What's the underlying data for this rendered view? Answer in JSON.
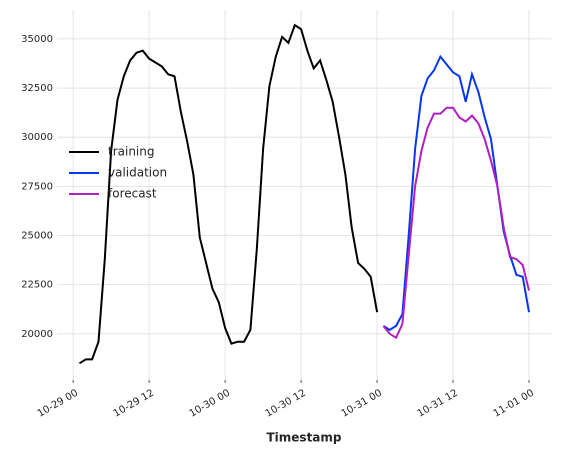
{
  "chart_data": {
    "type": "line",
    "xlabel": "Timestamp",
    "xlim": [
      "10-28 21:27",
      "11-01 03:33"
    ],
    "xticks": [
      "10-29 00",
      "10-29 12",
      "10-30 00",
      "10-30 12",
      "10-31 00",
      "10-31 12",
      "11-01 00"
    ],
    "ylim": [
      17650,
      36470
    ],
    "yticks": [
      20000,
      22500,
      25000,
      27500,
      30000,
      32500,
      35000
    ],
    "grid": true,
    "legend": "center left",
    "series": [
      {
        "name": "training",
        "color": "#000000",
        "x": [
          "10-29 01",
          "10-29 02",
          "10-29 03",
          "10-29 04",
          "10-29 05",
          "10-29 06",
          "10-29 07",
          "10-29 08",
          "10-29 09",
          "10-29 10",
          "10-29 11",
          "10-29 12",
          "10-29 13",
          "10-29 14",
          "10-29 15",
          "10-29 16",
          "10-29 17",
          "10-29 18",
          "10-29 19",
          "10-29 20",
          "10-29 21",
          "10-29 22",
          "10-29 23",
          "10-30 00",
          "10-30 01",
          "10-30 02",
          "10-30 03",
          "10-30 04",
          "10-30 05",
          "10-30 06",
          "10-30 07",
          "10-30 08",
          "10-30 09",
          "10-30 10",
          "10-30 11",
          "10-30 12",
          "10-30 13",
          "10-30 14",
          "10-30 15",
          "10-30 16",
          "10-30 17",
          "10-30 18",
          "10-30 19",
          "10-30 20",
          "10-30 21",
          "10-30 22",
          "10-30 23",
          "10-31 00"
        ],
        "values": [
          18500,
          18700,
          18700,
          19600,
          23800,
          29300,
          31900,
          33100,
          33900,
          34300,
          34400,
          34000,
          33800,
          33600,
          33200,
          33100,
          31300,
          29800,
          28100,
          24900,
          23600,
          22300,
          21600,
          20300,
          19500,
          19600,
          19600,
          20200,
          24300,
          29400,
          32600,
          34100,
          35100,
          34800,
          35700,
          35500,
          34400,
          33500,
          33900,
          32900,
          31800,
          30000,
          28100,
          25400,
          23600,
          23300,
          22900,
          21100
        ]
      },
      {
        "name": "validation",
        "color": "#0637f0",
        "x": [
          "10-31 01",
          "10-31 02",
          "10-31 03",
          "10-31 04",
          "10-31 05",
          "10-31 06",
          "10-31 07",
          "10-31 08",
          "10-31 09",
          "10-31 10",
          "10-31 11",
          "10-31 12",
          "10-31 13",
          "10-31 14",
          "10-31 15",
          "10-31 16",
          "10-31 17",
          "10-31 18",
          "10-31 19",
          "10-31 20",
          "10-31 21",
          "10-31 22",
          "10-31 23",
          "11-01 00"
        ],
        "values": [
          20400,
          20200,
          20400,
          21000,
          25000,
          29400,
          32100,
          33000,
          33400,
          34100,
          33700,
          33300,
          33100,
          31800,
          33200,
          32300,
          31000,
          29900,
          27500,
          25200,
          24000,
          23000,
          22900,
          21100
        ]
      },
      {
        "name": "forecast",
        "color": "#b01fbf",
        "x": [
          "10-31 01",
          "10-31 02",
          "10-31 03",
          "10-31 04",
          "10-31 05",
          "10-31 06",
          "10-31 07",
          "10-31 08",
          "10-31 09",
          "10-31 10",
          "10-31 11",
          "10-31 12",
          "10-31 13",
          "10-31 14",
          "10-31 15",
          "10-31 16",
          "10-31 17",
          "10-31 18",
          "10-31 19",
          "10-31 20",
          "10-31 21",
          "10-31 22",
          "10-31 23",
          "11-01 00"
        ],
        "values": [
          20400,
          20000,
          19800,
          20500,
          24000,
          27500,
          29300,
          30500,
          31200,
          31200,
          31500,
          31500,
          31000,
          30800,
          31100,
          30700,
          29900,
          28800,
          27500,
          25400,
          23900,
          23800,
          23500,
          22200
        ]
      }
    ]
  }
}
